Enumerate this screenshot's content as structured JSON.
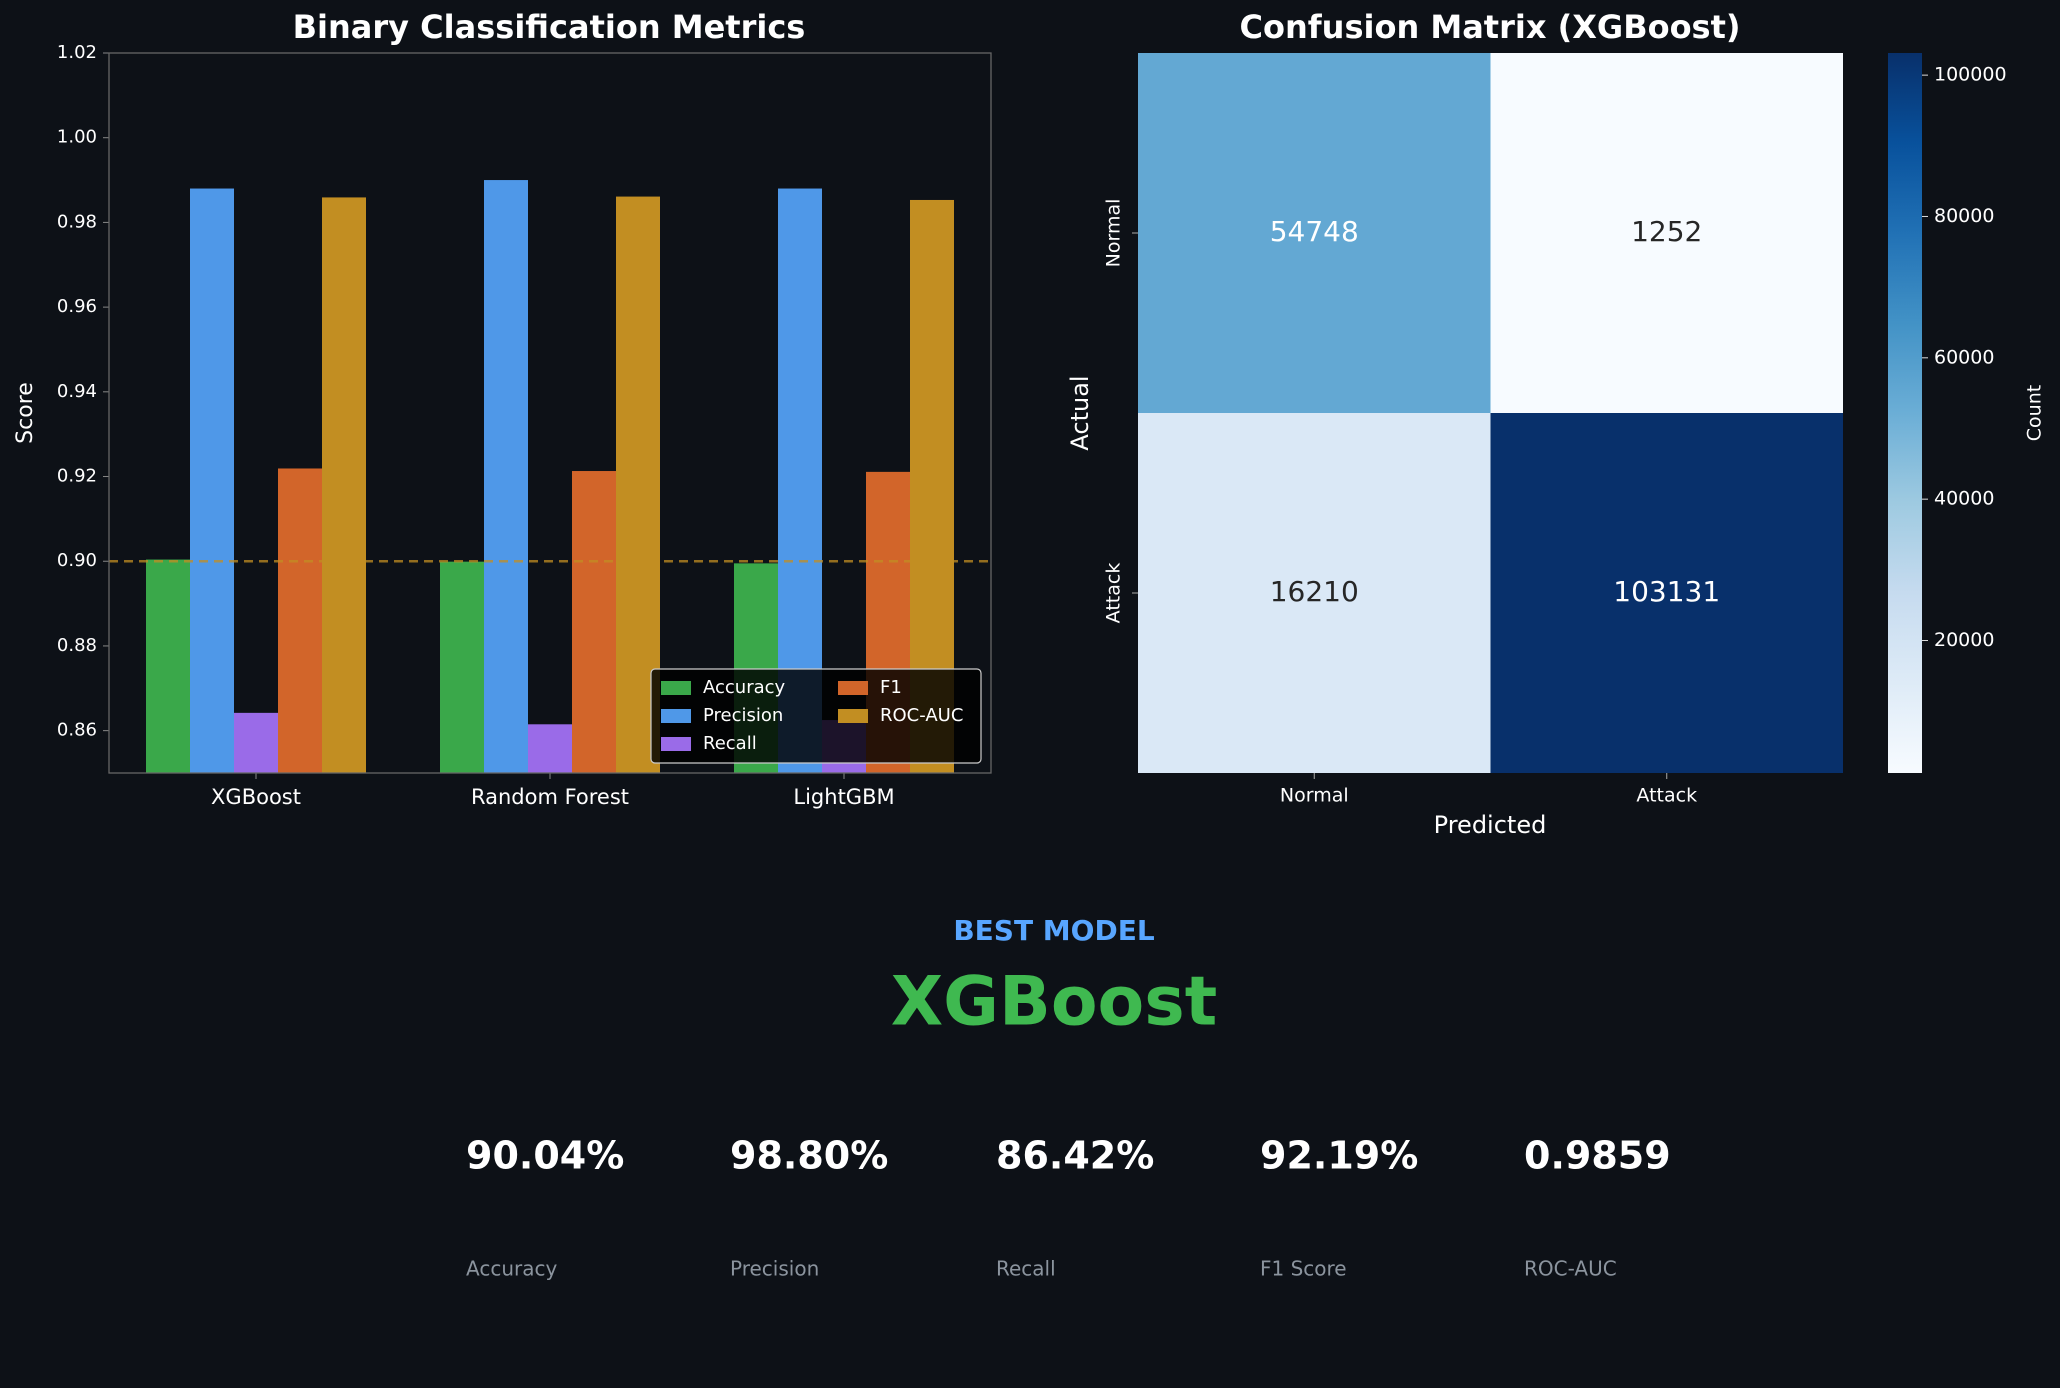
{
  "chart_data": [
    {
      "type": "bar",
      "title": "Binary Classification Metrics",
      "ylabel": "Score",
      "categories": [
        "XGBoost",
        "Random Forest",
        "LightGBM"
      ],
      "series": [
        {
          "name": "Accuracy",
          "color": "#3aa84a",
          "values": [
            0.9004,
            0.8999,
            0.8995
          ]
        },
        {
          "name": "Precision",
          "color": "#4f98e8",
          "values": [
            0.988,
            0.99,
            0.988
          ]
        },
        {
          "name": "Recall",
          "color": "#9a6be8",
          "values": [
            0.8642,
            0.8615,
            0.8625
          ]
        },
        {
          "name": "F1",
          "color": "#d2652a",
          "values": [
            0.9219,
            0.9213,
            0.9211
          ]
        },
        {
          "name": "ROC-AUC",
          "color": "#c28e22",
          "values": [
            0.9859,
            0.9861,
            0.9853
          ]
        }
      ],
      "ylim": [
        0.85,
        1.02
      ],
      "yticks": [
        0.86,
        0.88,
        {
          "value": 0.9,
          "label": "0.90"
        },
        0.92,
        0.94,
        0.96,
        0.98,
        {
          "value": 1,
          "label": "1.00"
        },
        1.02
      ],
      "hline": {
        "value": 0.9,
        "color": "#c28e22"
      },
      "legend": "lower right"
    },
    {
      "type": "heatmap",
      "title": "Confusion Matrix (XGBoost)",
      "xlabel": "Predicted",
      "ylabel": "Actual",
      "x_categories": [
        "Normal",
        "Attack"
      ],
      "y_categories": [
        "Normal",
        "Attack"
      ],
      "values": [
        [
          54748,
          1252
        ],
        [
          16210,
          103131
        ]
      ],
      "colormap": "Blues",
      "clim": [
        1252,
        103131
      ],
      "cbar_ticks": [
        20000,
        40000,
        60000,
        80000,
        100000
      ],
      "cbar_label": "Count"
    }
  ],
  "summary": {
    "label": "BEST MODEL",
    "model": "XGBoost",
    "metrics": [
      {
        "value": "90.04%",
        "name": "Accuracy"
      },
      {
        "value": "98.80%",
        "name": "Precision"
      },
      {
        "value": "86.42%",
        "name": "Recall"
      },
      {
        "value": "92.19%",
        "name": "F1 Score"
      },
      {
        "value": "0.9859",
        "name": "ROC-AUC"
      }
    ]
  }
}
